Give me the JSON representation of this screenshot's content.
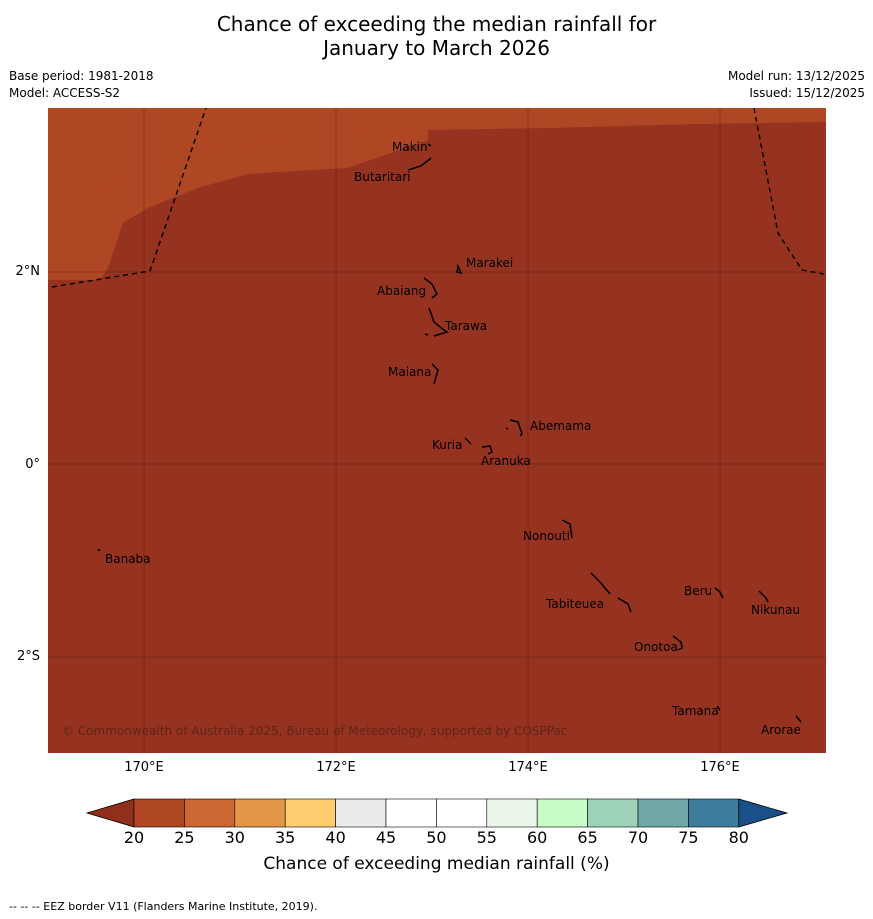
{
  "title_line1": "Chance of exceeding the median rainfall for",
  "title_line2": "January to March 2026",
  "base_period": "Base period: 1981-2018",
  "model": "Model: ACCESS-S2",
  "model_run": "Model run: 13/12/2025",
  "issued": "Issued: 15/12/2025",
  "lat_ticks": [
    "2°N",
    "0°",
    "2°S"
  ],
  "lon_ticks": [
    "170°E",
    "172°E",
    "174°E",
    "176°E"
  ],
  "places": {
    "makin": "Makin",
    "butaritari": "Butaritari",
    "marakei": "Marakei",
    "abaiang": "Abaiang",
    "tarawa": "Tarawa",
    "maiana": "Maiana",
    "abemama": "Abemama",
    "kuria": "Kuria",
    "aranuka": "Aranuka",
    "nonouti": "Nonouti",
    "banaba": "Banaba",
    "beru": "Beru",
    "nikunau": "Nikunau",
    "tabiteuea": "Tabiteuea",
    "onotoa": "Onotoa",
    "tamana": "Tamana",
    "arorae": "Arorae"
  },
  "credit": "© Commonwealth of Australia 2025, Bureau of Meteorology, supported by COSPPac",
  "colorbar": {
    "label": "Chance of exceeding median rainfall (%)",
    "ticks": [
      "20",
      "25",
      "30",
      "35",
      "40",
      "45",
      "50",
      "55",
      "60",
      "65",
      "70",
      "75",
      "80"
    ],
    "under_color": "#8f2f1c",
    "over_color": "#1a5089",
    "colors": [
      "#b04724",
      "#cc6633",
      "#e39648",
      "#fdcd70",
      "#ecebe9",
      "#ffffff",
      "#ffffff",
      "#ebf5e9",
      "#c6fcc6",
      "#9ed2b7",
      "#70a8a8",
      "#3f7b9a"
    ]
  },
  "map_colors": {
    "base": "#963220",
    "band_25": "#b04724",
    "band_30": "#cc6633",
    "band_35": "#e39648",
    "band_40": "#fdcd70",
    "band_45": "#ecebe9"
  },
  "footnote": "--  --  -- EEZ border V11 (Flanders Marine Institute, 2019)."
}
